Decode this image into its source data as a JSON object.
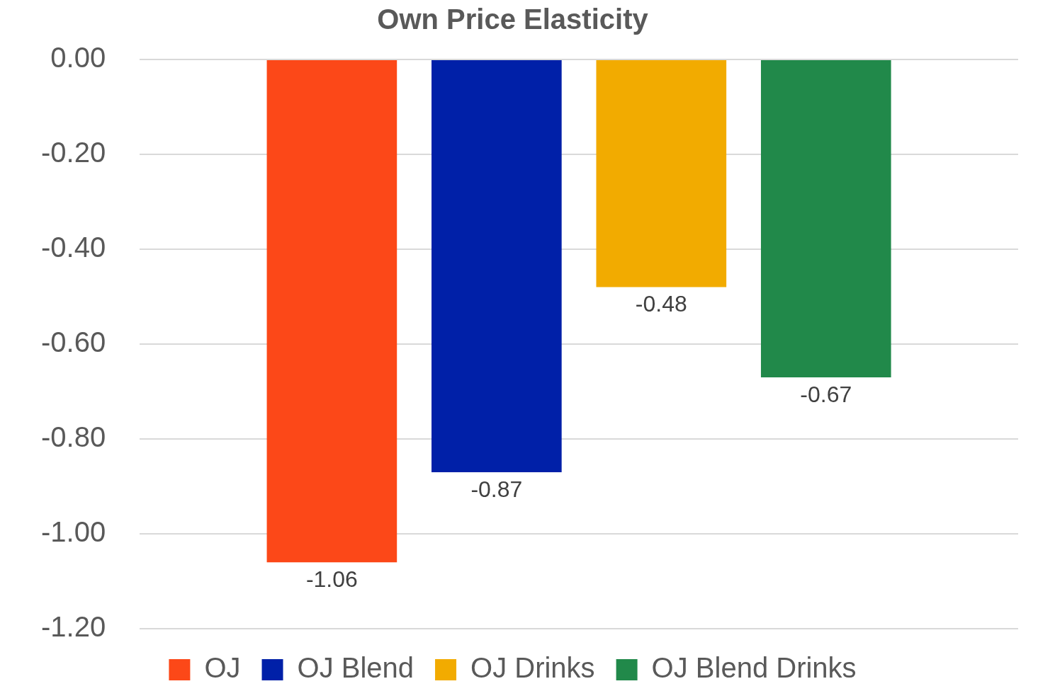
{
  "chart_data": {
    "type": "bar",
    "title": "Own Price Elasticity",
    "categories": [
      null
    ],
    "series": [
      {
        "name": "OJ",
        "color": "#fc4818",
        "values": [
          -1.06
        ]
      },
      {
        "name": "OJ Blend",
        "color": "#0020a8",
        "values": [
          -0.87
        ]
      },
      {
        "name": "OJ Drinks",
        "color": "#f2ab00",
        "values": [
          -0.48
        ]
      },
      {
        "name": "OJ Blend Drinks",
        "color": "#21894a",
        "values": [
          -0.67
        ]
      }
    ],
    "ylim": [
      -1.2,
      0
    ],
    "yticks": [
      {
        "value": -1.2,
        "label": "-1.20"
      },
      {
        "value": -1,
        "label": "-1.00"
      },
      {
        "value": -0.8,
        "label": "-0.80"
      },
      {
        "value": -0.6,
        "label": "-0.60"
      },
      {
        "value": -0.4,
        "label": "-0.40"
      },
      {
        "value": -0.2,
        "label": "-0.20"
      },
      {
        "value": 0,
        "label": "0.00"
      }
    ],
    "grid": "y",
    "legend": "bottom",
    "data_labels": true
  }
}
